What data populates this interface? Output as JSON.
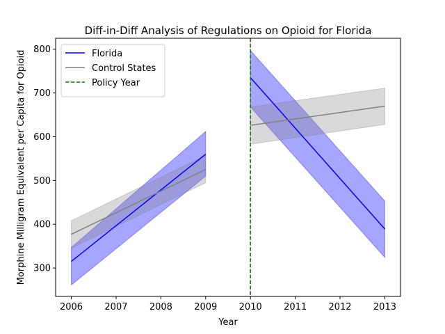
{
  "chart_data": {
    "type": "line",
    "title": "Diff-in-Diff Analysis of Regulations on Opioid for Florida",
    "xlabel": "Year",
    "ylabel": "Morphine Milligram Equivalent per Capita for Opioid",
    "xlim": [
      2005.65,
      2013.35
    ],
    "ylim": [
      235,
      825
    ],
    "x_ticks": [
      2006,
      2007,
      2008,
      2009,
      2010,
      2011,
      2012,
      2013
    ],
    "y_ticks": [
      300,
      400,
      500,
      600,
      700,
      800
    ],
    "grid": false,
    "legend_position": "upper-left",
    "policy_year": 2010,
    "series": [
      {
        "name": "Florida",
        "color": "#0000ff",
        "segments": [
          {
            "x": [
              2006,
              2009
            ],
            "y": [
              315,
              560
            ],
            "ci_lower": [
              261,
              510
            ],
            "ci_upper": [
              347,
              612
            ]
          },
          {
            "x": [
              2010,
              2013
            ],
            "y": [
              735,
              389
            ],
            "ci_lower": [
              668,
              324
            ],
            "ci_upper": [
              797,
              453
            ]
          }
        ]
      },
      {
        "name": "Control States",
        "color": "#808080",
        "segments": [
          {
            "x": [
              2006,
              2009
            ],
            "y": [
              377,
              525
            ],
            "ci_lower": [
              345,
              495
            ],
            "ci_upper": [
              408,
              557
            ]
          },
          {
            "x": [
              2010,
              2013
            ],
            "y": [
              626,
              670
            ],
            "ci_lower": [
              583,
              628
            ],
            "ci_upper": [
              668,
              711
            ]
          }
        ]
      },
      {
        "name": "Policy Year",
        "color": "#008000",
        "style": "dashed",
        "x": 2010
      }
    ]
  }
}
